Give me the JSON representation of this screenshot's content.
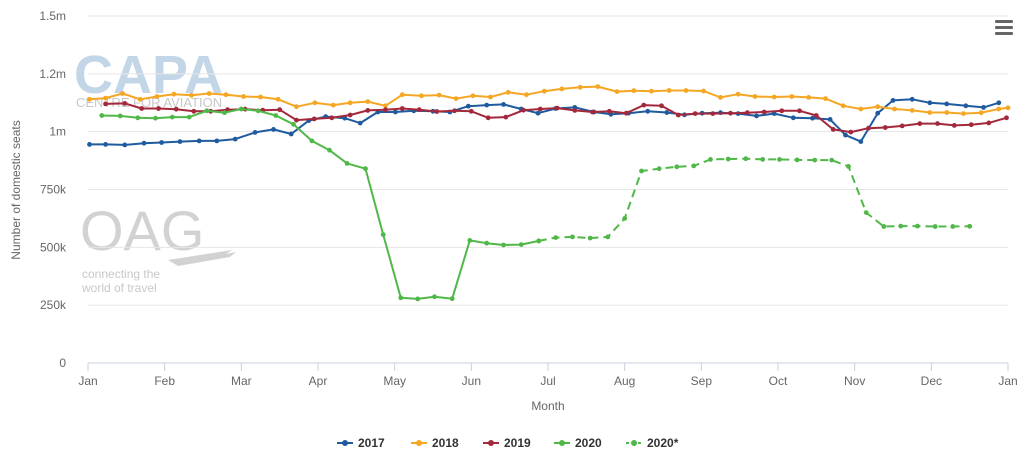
{
  "watermarks": {
    "capa": "CAPA",
    "capa_sub": "CENTRE FOR AVIATION",
    "oag": "OAG",
    "oag_tagline_1": "connecting the",
    "oag_tagline_2": "world of travel"
  },
  "menu_icon": "hamburger-menu-icon",
  "chart_data": {
    "type": "line",
    "title": "",
    "xlabel": "Month",
    "ylabel": "Number of domestic seats",
    "ylim": [
      0,
      1500000
    ],
    "yticks": [
      {
        "value": 0,
        "label": "0"
      },
      {
        "value": 250000,
        "label": "250k"
      },
      {
        "value": 500000,
        "label": "500k"
      },
      {
        "value": 750000,
        "label": "750k"
      },
      {
        "value": 1000000,
        "label": "1m"
      },
      {
        "value": 1250000,
        "label": "1.2m"
      },
      {
        "value": 1500000,
        "label": "1.5m"
      }
    ],
    "xlim": [
      0,
      12
    ],
    "xticks": [
      "Jan",
      "Feb",
      "Mar",
      "Apr",
      "May",
      "Jun",
      "Jul",
      "Aug",
      "Sep",
      "Oct",
      "Nov",
      "Dec",
      "Jan"
    ],
    "grid": true,
    "legend_position": "bottom-center",
    "series": [
      {
        "name": "2017",
        "color": "#1f5b9e",
        "dashed": false,
        "points": [
          [
            0.02,
            945000
          ],
          [
            0.23,
            945000
          ],
          [
            0.48,
            943000
          ],
          [
            0.73,
            950000
          ],
          [
            0.96,
            953000
          ],
          [
            1.2,
            957000
          ],
          [
            1.45,
            960000
          ],
          [
            1.68,
            960000
          ],
          [
            1.92,
            968000
          ],
          [
            2.18,
            997000
          ],
          [
            2.42,
            1010000
          ],
          [
            2.65,
            990000
          ],
          [
            2.88,
            1048000
          ],
          [
            3.1,
            1065000
          ],
          [
            3.35,
            1058000
          ],
          [
            3.55,
            1037000
          ],
          [
            3.78,
            1085000
          ],
          [
            4.01,
            1085000
          ],
          [
            4.25,
            1090000
          ],
          [
            4.5,
            1088000
          ],
          [
            4.72,
            1085000
          ],
          [
            4.96,
            1110000
          ],
          [
            5.2,
            1115000
          ],
          [
            5.42,
            1118000
          ],
          [
            5.65,
            1098000
          ],
          [
            5.87,
            1080000
          ],
          [
            6.1,
            1100000
          ],
          [
            6.35,
            1105000
          ],
          [
            6.6,
            1085000
          ],
          [
            6.82,
            1075000
          ],
          [
            7.05,
            1080000
          ],
          [
            7.3,
            1088000
          ],
          [
            7.55,
            1083000
          ],
          [
            7.78,
            1073000
          ],
          [
            8.01,
            1080000
          ],
          [
            8.25,
            1082000
          ],
          [
            8.48,
            1078000
          ],
          [
            8.72,
            1068000
          ],
          [
            8.95,
            1078000
          ],
          [
            9.2,
            1060000
          ],
          [
            9.45,
            1058000
          ],
          [
            9.68,
            1053000
          ],
          [
            9.88,
            985000
          ],
          [
            10.08,
            957000
          ],
          [
            10.3,
            1080000
          ],
          [
            10.5,
            1135000
          ],
          [
            10.75,
            1140000
          ],
          [
            10.98,
            1125000
          ],
          [
            11.2,
            1120000
          ],
          [
            11.45,
            1112000
          ],
          [
            11.68,
            1105000
          ],
          [
            11.88,
            1125000
          ]
        ]
      },
      {
        "name": "2018",
        "color": "#f5a623",
        "dashed": false,
        "points": [
          [
            0.02,
            1140000
          ],
          [
            0.23,
            1145000
          ],
          [
            0.45,
            1165000
          ],
          [
            0.68,
            1140000
          ],
          [
            0.9,
            1152000
          ],
          [
            1.12,
            1162000
          ],
          [
            1.35,
            1157000
          ],
          [
            1.58,
            1165000
          ],
          [
            1.8,
            1160000
          ],
          [
            2.03,
            1152000
          ],
          [
            2.25,
            1150000
          ],
          [
            2.48,
            1140000
          ],
          [
            2.72,
            1108000
          ],
          [
            2.96,
            1125000
          ],
          [
            3.2,
            1115000
          ],
          [
            3.42,
            1125000
          ],
          [
            3.65,
            1130000
          ],
          [
            3.88,
            1112000
          ],
          [
            4.1,
            1160000
          ],
          [
            4.35,
            1155000
          ],
          [
            4.58,
            1158000
          ],
          [
            4.8,
            1143000
          ],
          [
            5.02,
            1155000
          ],
          [
            5.25,
            1150000
          ],
          [
            5.48,
            1170000
          ],
          [
            5.72,
            1160000
          ],
          [
            5.95,
            1175000
          ],
          [
            6.18,
            1185000
          ],
          [
            6.42,
            1192000
          ],
          [
            6.65,
            1195000
          ],
          [
            6.9,
            1173000
          ],
          [
            7.12,
            1177000
          ],
          [
            7.35,
            1175000
          ],
          [
            7.58,
            1178000
          ],
          [
            7.8,
            1178000
          ],
          [
            8.03,
            1176000
          ],
          [
            8.25,
            1148000
          ],
          [
            8.48,
            1162000
          ],
          [
            8.7,
            1152000
          ],
          [
            8.95,
            1150000
          ],
          [
            9.18,
            1152000
          ],
          [
            9.4,
            1148000
          ],
          [
            9.62,
            1143000
          ],
          [
            9.85,
            1112000
          ],
          [
            10.08,
            1098000
          ],
          [
            10.3,
            1108000
          ],
          [
            10.52,
            1098000
          ],
          [
            10.75,
            1092000
          ],
          [
            10.98,
            1083000
          ],
          [
            11.2,
            1083000
          ],
          [
            11.42,
            1078000
          ],
          [
            11.65,
            1082000
          ],
          [
            11.88,
            1098000
          ],
          [
            12.0,
            1103000
          ]
        ]
      },
      {
        "name": "2019",
        "color": "#a3283b",
        "dashed": false,
        "points": [
          [
            0.23,
            1120000
          ],
          [
            0.48,
            1122000
          ],
          [
            0.7,
            1100000
          ],
          [
            0.92,
            1100000
          ],
          [
            1.15,
            1097000
          ],
          [
            1.38,
            1088000
          ],
          [
            1.6,
            1088000
          ],
          [
            1.82,
            1095000
          ],
          [
            2.05,
            1097000
          ],
          [
            2.28,
            1093000
          ],
          [
            2.5,
            1095000
          ],
          [
            2.72,
            1050000
          ],
          [
            2.95,
            1055000
          ],
          [
            3.18,
            1060000
          ],
          [
            3.42,
            1072000
          ],
          [
            3.65,
            1092000
          ],
          [
            3.88,
            1095000
          ],
          [
            4.1,
            1100000
          ],
          [
            4.32,
            1095000
          ],
          [
            4.55,
            1087000
          ],
          [
            4.78,
            1090000
          ],
          [
            5.0,
            1088000
          ],
          [
            5.22,
            1060000
          ],
          [
            5.45,
            1063000
          ],
          [
            5.68,
            1093000
          ],
          [
            5.9,
            1098000
          ],
          [
            6.12,
            1102000
          ],
          [
            6.35,
            1092000
          ],
          [
            6.58,
            1085000
          ],
          [
            6.8,
            1088000
          ],
          [
            7.02,
            1080000
          ],
          [
            7.25,
            1115000
          ],
          [
            7.48,
            1112000
          ],
          [
            7.7,
            1072000
          ],
          [
            7.92,
            1078000
          ],
          [
            8.15,
            1078000
          ],
          [
            8.38,
            1080000
          ],
          [
            8.6,
            1082000
          ],
          [
            8.82,
            1085000
          ],
          [
            9.05,
            1090000
          ],
          [
            9.28,
            1090000
          ],
          [
            9.5,
            1070000
          ],
          [
            9.72,
            1010000
          ],
          [
            9.95,
            998000
          ],
          [
            10.18,
            1015000
          ],
          [
            10.4,
            1018000
          ],
          [
            10.62,
            1025000
          ],
          [
            10.85,
            1035000
          ],
          [
            11.08,
            1035000
          ],
          [
            11.3,
            1027000
          ],
          [
            11.52,
            1030000
          ],
          [
            11.75,
            1038000
          ],
          [
            11.98,
            1060000
          ]
        ]
      },
      {
        "name": "2020",
        "color": "#50b848",
        "dashed": false,
        "points": [
          [
            0.18,
            1070000
          ],
          [
            0.42,
            1068000
          ],
          [
            0.65,
            1060000
          ],
          [
            0.88,
            1058000
          ],
          [
            1.1,
            1063000
          ],
          [
            1.32,
            1063000
          ],
          [
            1.55,
            1090000
          ],
          [
            1.78,
            1082000
          ],
          [
            2.0,
            1098000
          ],
          [
            2.22,
            1090000
          ],
          [
            2.45,
            1070000
          ],
          [
            2.68,
            1032000
          ],
          [
            2.92,
            960000
          ],
          [
            3.15,
            920000
          ],
          [
            3.38,
            863000
          ],
          [
            3.62,
            840000
          ],
          [
            3.85,
            555000
          ],
          [
            4.08,
            282000
          ],
          [
            4.3,
            277000
          ],
          [
            4.52,
            286000
          ],
          [
            4.75,
            278000
          ],
          [
            4.98,
            530000
          ],
          [
            5.2,
            518000
          ],
          [
            5.42,
            510000
          ],
          [
            5.65,
            512000
          ],
          [
            5.88,
            528000
          ]
        ]
      },
      {
        "name": "2020*",
        "color": "#50b848",
        "dashed": true,
        "points": [
          [
            5.88,
            528000
          ],
          [
            6.1,
            542000
          ],
          [
            6.32,
            545000
          ],
          [
            6.55,
            540000
          ],
          [
            6.78,
            545000
          ],
          [
            7.0,
            625000
          ],
          [
            7.22,
            830000
          ],
          [
            7.45,
            840000
          ],
          [
            7.68,
            848000
          ],
          [
            7.9,
            852000
          ],
          [
            8.12,
            880000
          ],
          [
            8.35,
            882000
          ],
          [
            8.58,
            883000
          ],
          [
            8.8,
            880000
          ],
          [
            9.02,
            880000
          ],
          [
            9.25,
            878000
          ],
          [
            9.48,
            877000
          ],
          [
            9.7,
            877000
          ],
          [
            9.92,
            850000
          ],
          [
            10.15,
            650000
          ],
          [
            10.38,
            590000
          ],
          [
            10.6,
            592000
          ],
          [
            10.82,
            592000
          ],
          [
            11.05,
            590000
          ],
          [
            11.28,
            590000
          ],
          [
            11.5,
            591000
          ]
        ]
      }
    ]
  }
}
